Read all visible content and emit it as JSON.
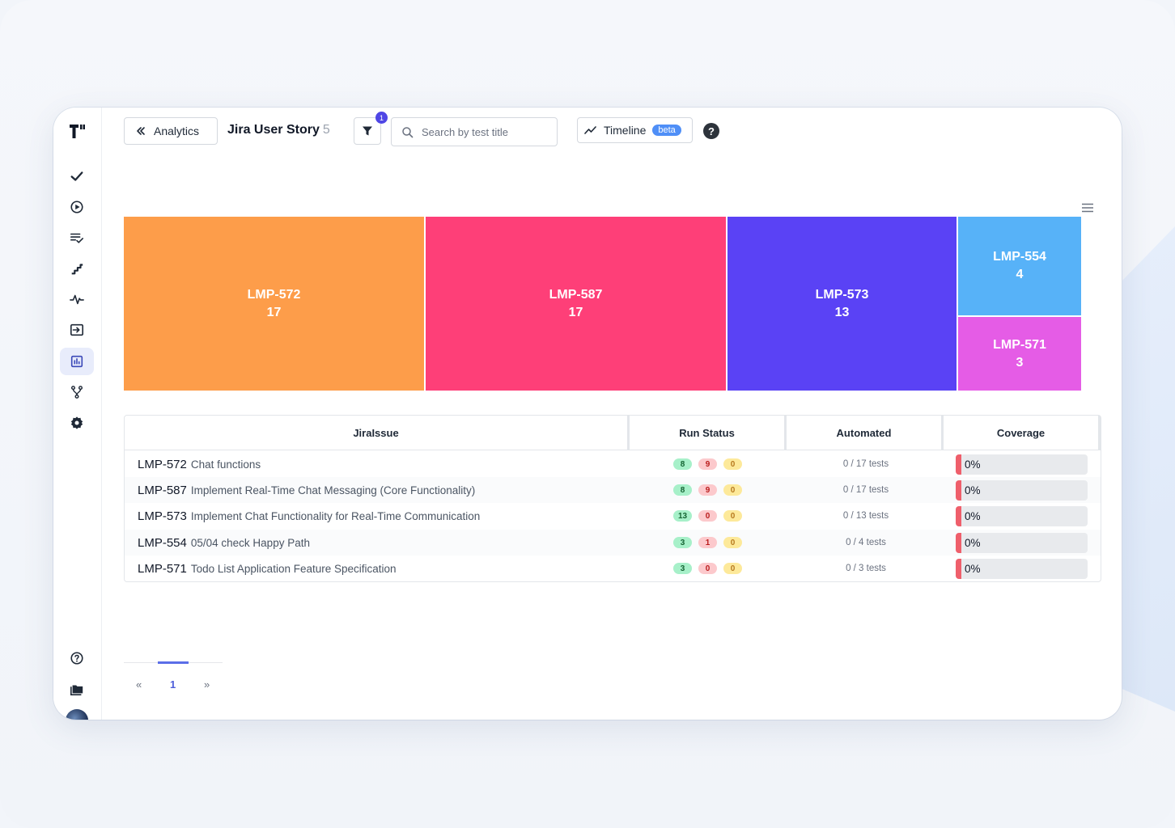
{
  "header": {
    "back_label": "Analytics",
    "title": "Jira User Story",
    "title_count": "5",
    "filter_badge": "1",
    "search_placeholder": "Search by test title",
    "timeline_label": "Timeline",
    "timeline_badge": "beta",
    "help_label": "?"
  },
  "sidebar": {
    "items": [
      {
        "icon": "check-icon"
      },
      {
        "icon": "play-circle-icon"
      },
      {
        "icon": "list-check-icon"
      },
      {
        "icon": "steps-icon"
      },
      {
        "icon": "pulse-icon"
      },
      {
        "icon": "import-icon"
      },
      {
        "icon": "analytics-icon",
        "active": true
      },
      {
        "icon": "branch-icon"
      },
      {
        "icon": "gear-icon"
      }
    ],
    "bottom": [
      {
        "icon": "help-circle-icon"
      },
      {
        "icon": "folders-icon"
      },
      {
        "icon": "avatar"
      }
    ]
  },
  "chart_data": {
    "type": "treemap",
    "items": [
      {
        "label": "LMP-572",
        "value": 17,
        "color": "#fd9d4a"
      },
      {
        "label": "LMP-587",
        "value": 17,
        "color": "#fe3f78"
      },
      {
        "label": "LMP-573",
        "value": 13,
        "color": "#5a42f5"
      },
      {
        "label": "LMP-554",
        "value": 4,
        "color": "#57b2f8"
      },
      {
        "label": "LMP-571",
        "value": 3,
        "color": "#e55ce6"
      }
    ]
  },
  "table": {
    "columns": [
      "JiraIssue",
      "Run Status",
      "Automated",
      "Coverage"
    ],
    "rows": [
      {
        "key": "LMP-572",
        "title": "Chat functions",
        "passed": "8",
        "failed": "9",
        "skipped": "0",
        "automated": "0 / 17 tests",
        "coverage": "0%",
        "coverage_value": 0
      },
      {
        "key": "LMP-587",
        "title": "Implement Real-Time Chat Messaging (Core Functionality)",
        "passed": "8",
        "failed": "9",
        "skipped": "0",
        "automated": "0 / 17 tests",
        "coverage": "0%",
        "coverage_value": 0
      },
      {
        "key": "LMP-573",
        "title": "Implement Chat Functionality for Real-Time Communication",
        "passed": "13",
        "failed": "0",
        "skipped": "0",
        "automated": "0 / 13 tests",
        "coverage": "0%",
        "coverage_value": 0
      },
      {
        "key": "LMP-554",
        "title": "05/04 check Happy Path",
        "passed": "3",
        "failed": "1",
        "skipped": "0",
        "automated": "0 / 4 tests",
        "coverage": "0%",
        "coverage_value": 0
      },
      {
        "key": "LMP-571",
        "title": "Todo List Application Feature Specification",
        "passed": "3",
        "failed": "0",
        "skipped": "0",
        "automated": "0 / 3 tests",
        "coverage": "0%",
        "coverage_value": 0
      }
    ]
  },
  "pagination": {
    "prev": "«",
    "current": "1",
    "next": "»"
  }
}
